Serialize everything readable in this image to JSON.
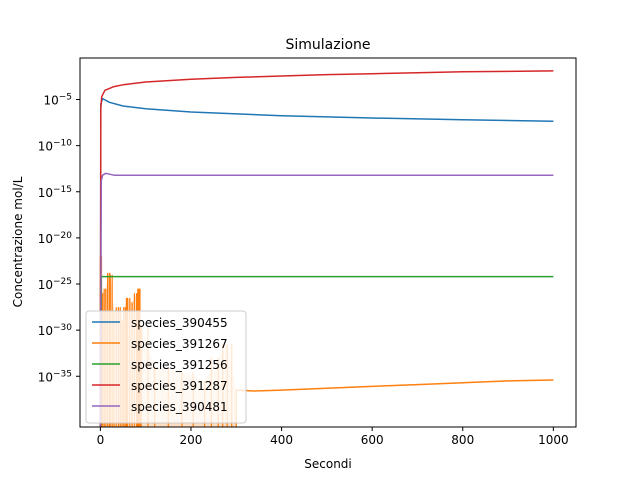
{
  "chart_data": {
    "type": "line",
    "title": "Simulazione",
    "xlabel": "Secondi",
    "ylabel": "Concentrazione mol/L",
    "xlim": [
      -45,
      1050
    ],
    "ylim_log10": [
      -40.5,
      -0.5
    ],
    "yscale": "log",
    "x_ticks": [
      0,
      200,
      400,
      600,
      800,
      1000
    ],
    "x_tick_labels": [
      "0",
      "200",
      "400",
      "600",
      "800",
      "1000"
    ],
    "y_ticks_log10": [
      -35,
      -30,
      -25,
      -20,
      -15,
      -10,
      -5
    ],
    "y_tick_labels": [
      {
        "base": "10",
        "exp": "−35"
      },
      {
        "base": "10",
        "exp": "−30"
      },
      {
        "base": "10",
        "exp": "−25"
      },
      {
        "base": "10",
        "exp": "−20"
      },
      {
        "base": "10",
        "exp": "−15"
      },
      {
        "base": "10",
        "exp": "−10"
      },
      {
        "base": "10",
        "exp": "−5"
      }
    ],
    "grid": false,
    "legend_position": "lower-left",
    "series": [
      {
        "name": "species_390455",
        "color": "#1f77b4",
        "points_log10": [
          [
            0,
            -40.5
          ],
          [
            1,
            -5.5
          ],
          [
            5,
            -4.9
          ],
          [
            20,
            -5.3
          ],
          [
            50,
            -5.7
          ],
          [
            100,
            -6.0
          ],
          [
            200,
            -6.35
          ],
          [
            400,
            -6.75
          ],
          [
            600,
            -7.0
          ],
          [
            800,
            -7.2
          ],
          [
            1000,
            -7.35
          ]
        ]
      },
      {
        "name": "species_391267",
        "color": "#ff7f0e",
        "points_log10": [
          [
            300,
            -36.5
          ],
          [
            340,
            -36.6
          ],
          [
            400,
            -36.5
          ],
          [
            500,
            -36.3
          ],
          [
            600,
            -36.1
          ],
          [
            700,
            -35.9
          ],
          [
            800,
            -35.7
          ],
          [
            900,
            -35.5
          ],
          [
            1000,
            -35.4
          ]
        ],
        "noise_region_log10": {
          "x_start": 0,
          "x_end": 300,
          "floor": -40.5,
          "peaks": [
            [
              0,
              -22.0
            ],
            [
              5,
              -26.0
            ],
            [
              12,
              -25.5
            ],
            [
              20,
              -23.8
            ],
            [
              22,
              -24.0
            ],
            [
              30,
              -28.0
            ],
            [
              40,
              -27.5
            ],
            [
              48,
              -29.0
            ],
            [
              55,
              -27.5
            ],
            [
              60,
              -26.5
            ],
            [
              70,
              -27.0
            ],
            [
              80,
              -26.0
            ],
            [
              85,
              -25.5
            ],
            [
              90,
              -29.5
            ],
            [
              120,
              -34.0
            ],
            [
              180,
              -34.5
            ],
            [
              230,
              -35.5
            ],
            [
              260,
              -33.0
            ],
            [
              280,
              -31.5
            ],
            [
              300,
              -36.5
            ]
          ]
        }
      },
      {
        "name": "species_391256",
        "color": "#2ca02c",
        "points_log10": [
          [
            0,
            -40.5
          ],
          [
            2,
            -24.2
          ],
          [
            1000,
            -24.2
          ]
        ]
      },
      {
        "name": "species_391287",
        "color": "#d62728",
        "points_log10": [
          [
            0,
            -40.5
          ],
          [
            1,
            -6.0
          ],
          [
            3,
            -4.7
          ],
          [
            10,
            -4.0
          ],
          [
            30,
            -3.6
          ],
          [
            50,
            -3.4
          ],
          [
            100,
            -3.1
          ],
          [
            200,
            -2.8
          ],
          [
            300,
            -2.6
          ],
          [
            400,
            -2.45
          ],
          [
            500,
            -2.3
          ],
          [
            600,
            -2.2
          ],
          [
            700,
            -2.1
          ],
          [
            800,
            -2.0
          ],
          [
            900,
            -1.95
          ],
          [
            1000,
            -1.9
          ]
        ]
      },
      {
        "name": "species_390481",
        "color": "#9467bd",
        "points_log10": [
          [
            0,
            -40.5
          ],
          [
            2,
            -13.8
          ],
          [
            5,
            -13.2
          ],
          [
            12,
            -13.0
          ],
          [
            30,
            -13.2
          ],
          [
            1000,
            -13.2
          ]
        ]
      }
    ]
  }
}
